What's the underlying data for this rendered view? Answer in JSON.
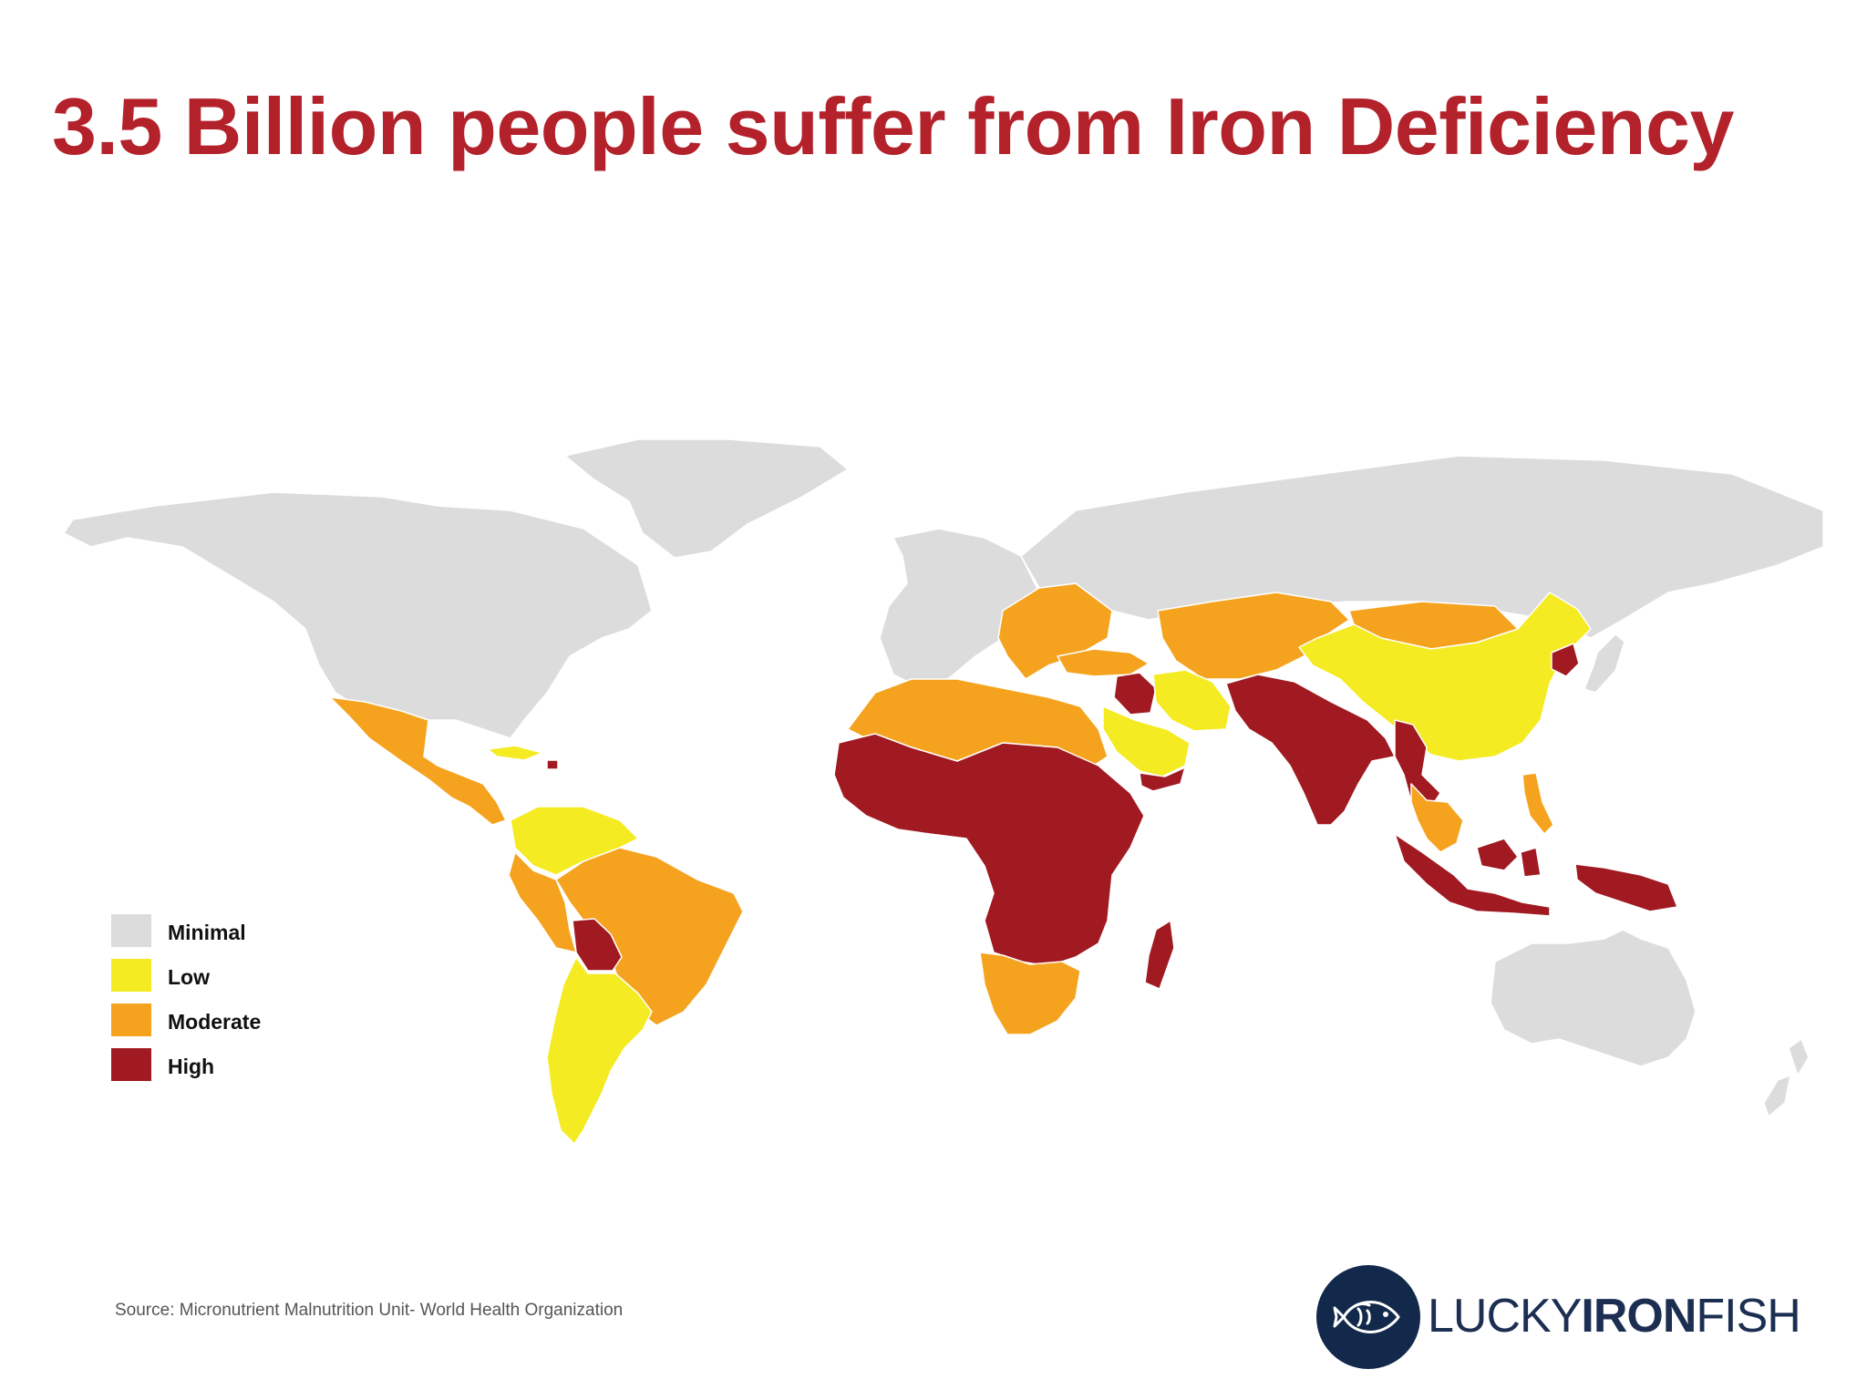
{
  "title": "3.5 Billion people suffer from Iron Deficiency",
  "legend": [
    {
      "label": "Minimal",
      "color": "#dcdcdc"
    },
    {
      "label": "Low",
      "color": "#f4eb22"
    },
    {
      "label": "Moderate",
      "color": "#f5a31e"
    },
    {
      "label": "High",
      "color": "#a11a22"
    }
  ],
  "colors": {
    "title": "#b3222a",
    "minimal": "#dcdcdc",
    "low": "#f4eb22",
    "moderate": "#f5a31e",
    "high": "#a11a22",
    "logo_navy": "#13294b"
  },
  "source": "Source: Micronutrient Malnutrition Unit- World Health Organization",
  "logo": {
    "word1": "LUCKY",
    "word2": "IRON",
    "word3": "FISH",
    "icon": "fish-icon"
  },
  "regions": [
    {
      "name": "North America",
      "level": "minimal"
    },
    {
      "name": "Greenland",
      "level": "minimal"
    },
    {
      "name": "Mexico & Central America",
      "level": "moderate"
    },
    {
      "name": "Cuba",
      "level": "low"
    },
    {
      "name": "Haiti",
      "level": "high"
    },
    {
      "name": "Venezuela & Colombia",
      "level": "low"
    },
    {
      "name": "Peru & Ecuador",
      "level": "moderate"
    },
    {
      "name": "Brazil",
      "level": "moderate"
    },
    {
      "name": "Bolivia",
      "level": "high"
    },
    {
      "name": "Argentina & Chile",
      "level": "low"
    },
    {
      "name": "Europe",
      "level": "minimal"
    },
    {
      "name": "Eastern Europe",
      "level": "moderate"
    },
    {
      "name": "Russia",
      "level": "minimal"
    },
    {
      "name": "Central Asia",
      "level": "moderate"
    },
    {
      "name": "Mongolia",
      "level": "moderate"
    },
    {
      "name": "China",
      "level": "low"
    },
    {
      "name": "North Korea",
      "level": "high"
    },
    {
      "name": "Japan",
      "level": "minimal"
    },
    {
      "name": "North Africa",
      "level": "moderate"
    },
    {
      "name": "Sub-Saharan Africa",
      "level": "high"
    },
    {
      "name": "Southern Africa",
      "level": "moderate"
    },
    {
      "name": "Madagascar",
      "level": "high"
    },
    {
      "name": "Turkey",
      "level": "moderate"
    },
    {
      "name": "Iraq",
      "level": "high"
    },
    {
      "name": "Iran",
      "level": "low"
    },
    {
      "name": "Saudi Arabia",
      "level": "low"
    },
    {
      "name": "Yemen",
      "level": "high"
    },
    {
      "name": "South Asia",
      "level": "high"
    },
    {
      "name": "Myanmar & Cambodia",
      "level": "high"
    },
    {
      "name": "Thailand & Vietnam",
      "level": "moderate"
    },
    {
      "name": "Philippines",
      "level": "moderate"
    },
    {
      "name": "Indonesia",
      "level": "high"
    },
    {
      "name": "Papua New Guinea",
      "level": "high"
    },
    {
      "name": "Australia",
      "level": "minimal"
    },
    {
      "name": "New Zealand",
      "level": "minimal"
    }
  ]
}
